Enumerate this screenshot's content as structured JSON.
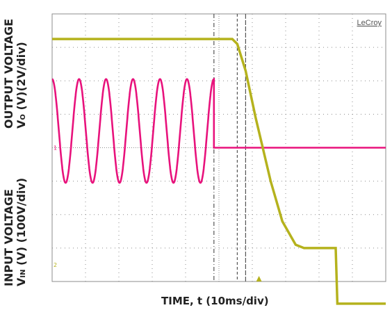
{
  "y_axis_top": {
    "title_line1": "OUTPUT VOLTAGE",
    "title_line2_prefix": "V",
    "title_line2_sub": "O",
    "title_line2_suffix": " (V)(2V/div)"
  },
  "y_axis_bottom": {
    "title_line1": "INPUT VOLTAGE",
    "title_line2_prefix": "V",
    "title_line2_sub": "IN",
    "title_line2_suffix": " (V) (100V/div)"
  },
  "x_axis": {
    "title": "TIME, t (10ms/div)"
  },
  "brand": "LeCroy",
  "channel_markers": [
    "1",
    "2"
  ],
  "colors": {
    "output": "#b5b21d",
    "input": "#e8127c",
    "grid": "#8c8c8c",
    "cursor": "#555555"
  },
  "chart_data": {
    "type": "line",
    "x_unit": "div (10ms/div)",
    "xlim": [
      0,
      10
    ],
    "ylim_div": [
      -4,
      4
    ],
    "grid": true,
    "series": [
      {
        "name": "",
        "quantity": "output voltage",
        "scale": "2V/div",
        "x": [
          0,
          5.4,
          5.55,
          5.8,
          6.1,
          6.55,
          6.9,
          7.3,
          7.55,
          8.45,
          8.5,
          8.55,
          10
        ],
        "y": [
          3.25,
          3.25,
          3.1,
          2.3,
          0.9,
          -1.0,
          -2.2,
          -2.9,
          -3.0,
          -3.0,
          -4.2,
          -6.0,
          -6.0
        ]
      },
      {
        "name": "",
        "quantity": "input voltage",
        "scale": "100V/div",
        "waveform": "sine",
        "cycles": 6,
        "x_start": 0,
        "x_end": 4.85,
        "amplitude_div": 1.55,
        "zero_level_div": 0.5,
        "flat_after_div": 0.0,
        "flat_x_end": 10
      }
    ],
    "cursors_x": [
      4.85,
      5.55,
      5.8
    ]
  }
}
